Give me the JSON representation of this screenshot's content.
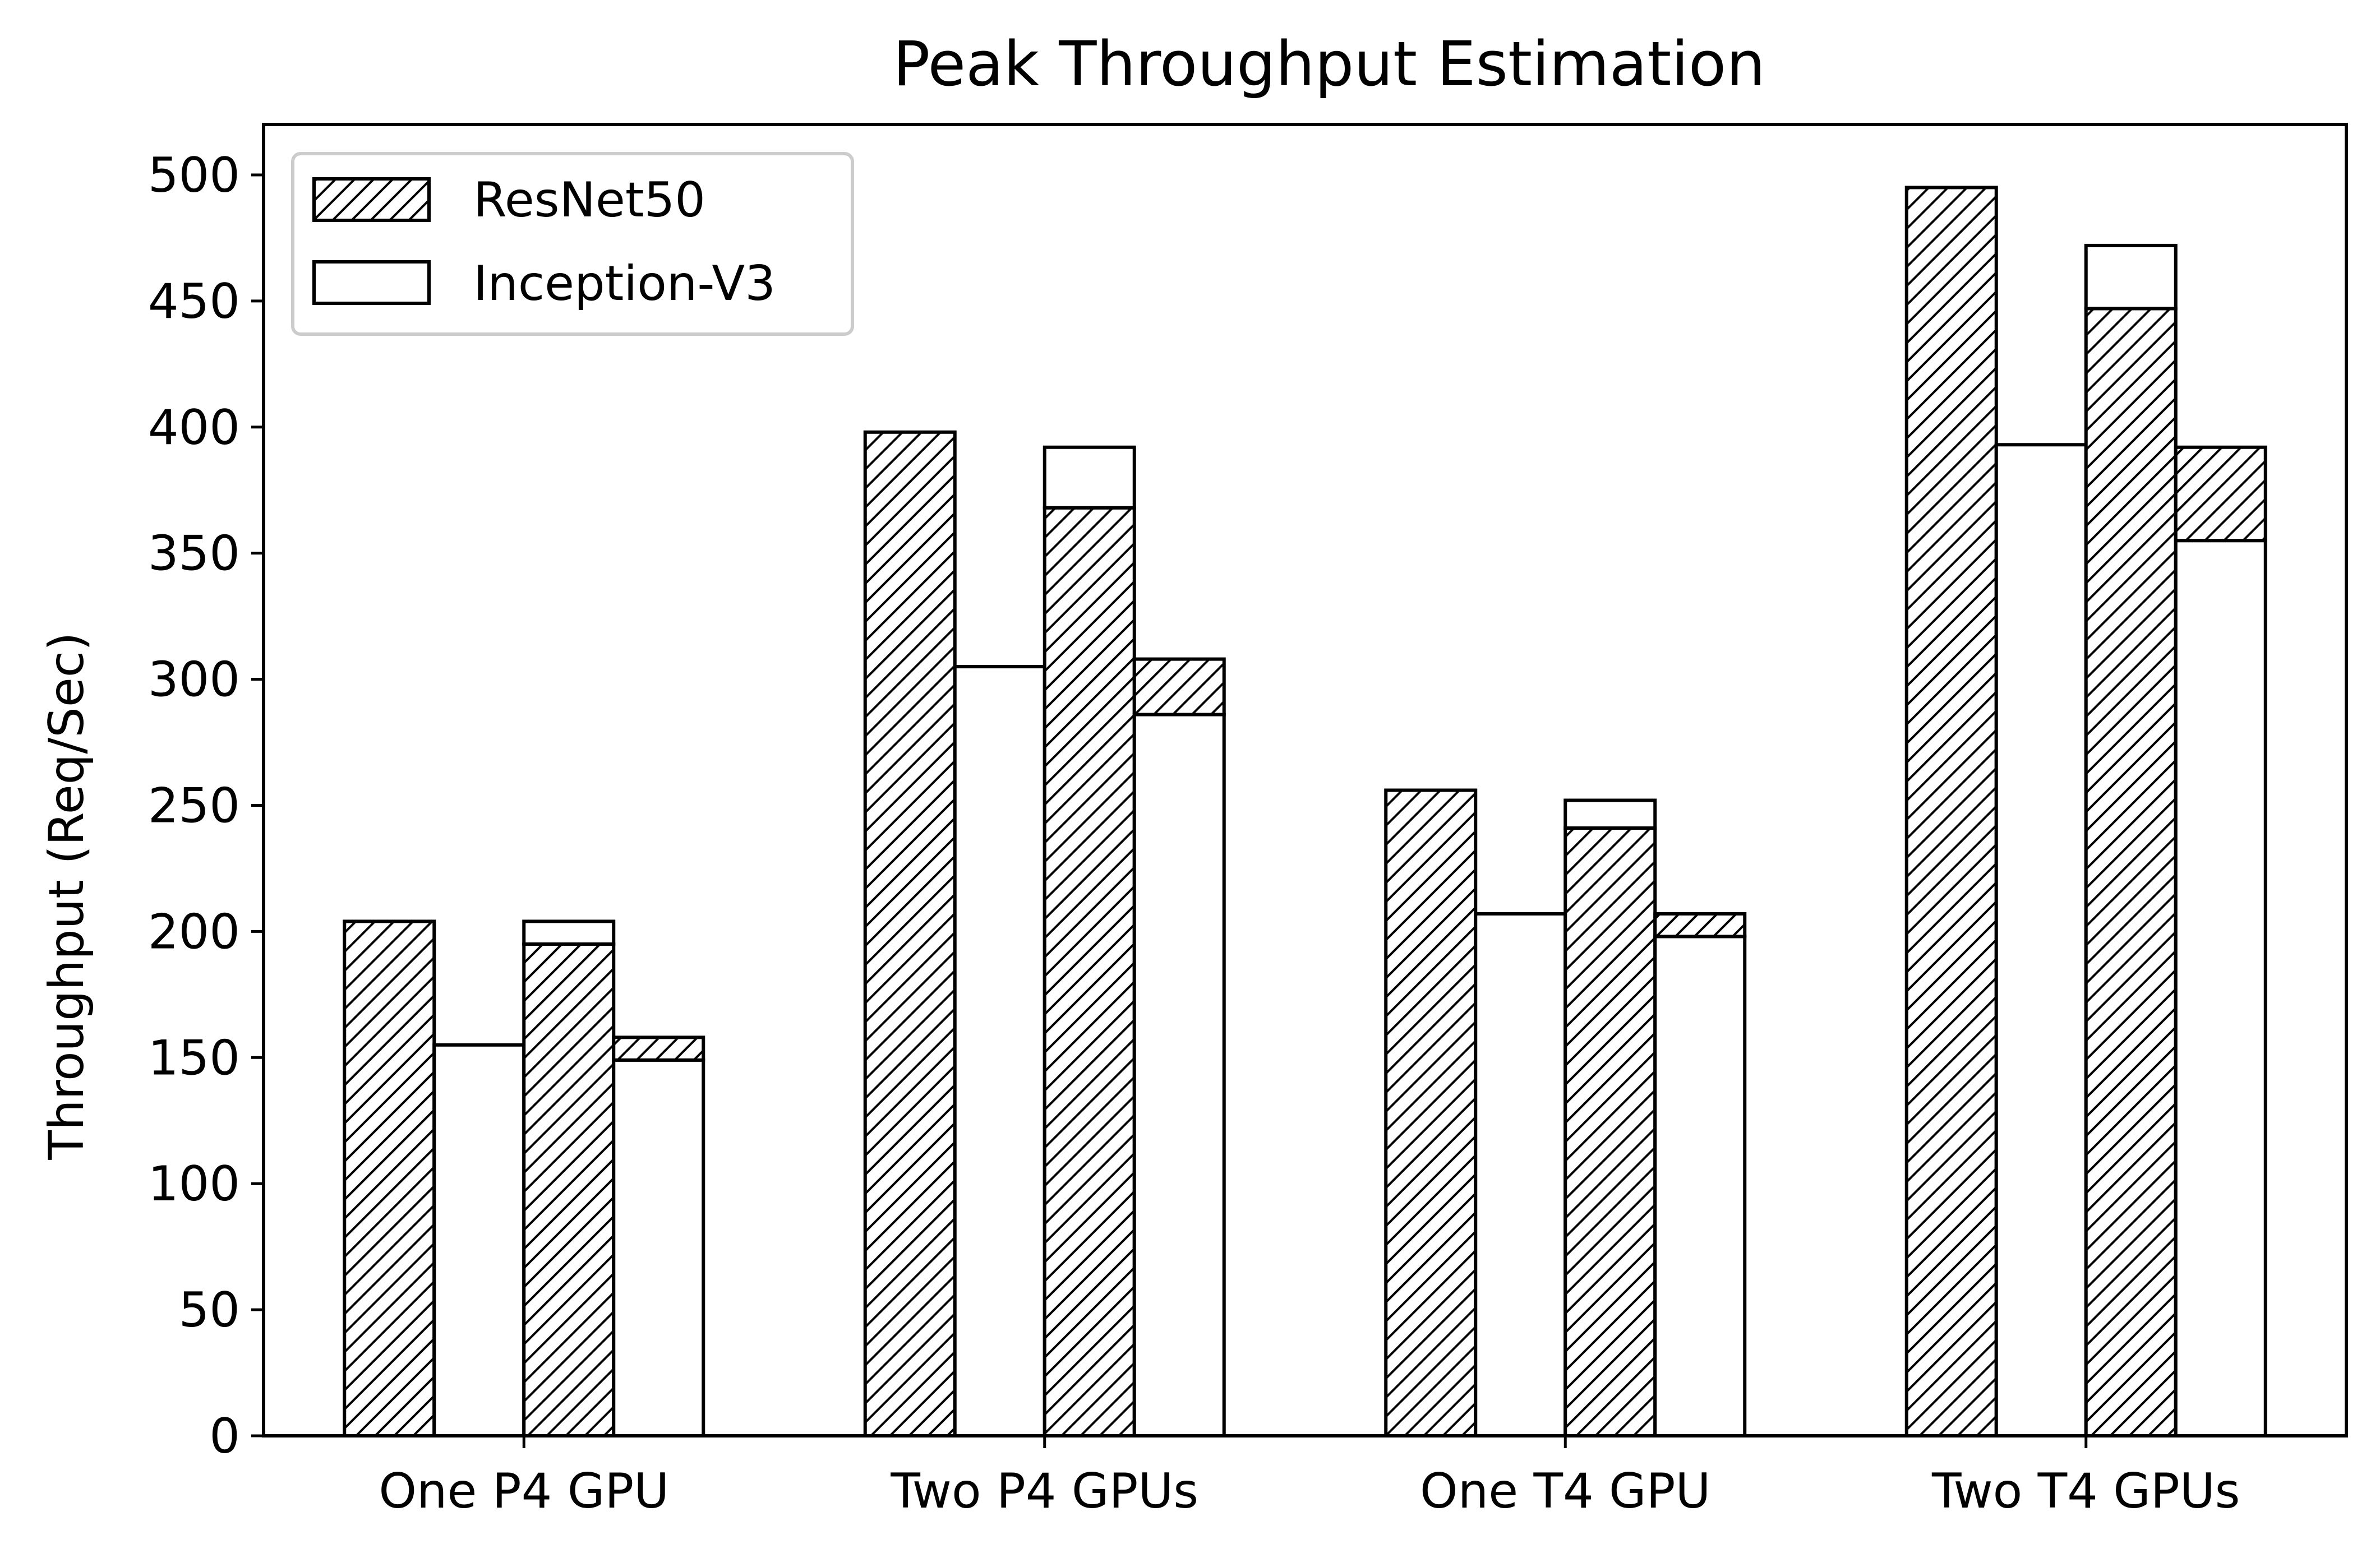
{
  "chart_data": {
    "type": "bar",
    "title": "Peak Throughput Estimation",
    "xlabel": "",
    "ylabel": "Throughput (Req/Sec)",
    "ylim": [
      0,
      520
    ],
    "yticks": [
      0,
      50,
      100,
      150,
      200,
      250,
      300,
      350,
      400,
      450,
      500
    ],
    "grid": false,
    "legend_position": "top-left",
    "categories": [
      "One P4 GPU",
      "Two P4 GPUs",
      "One T4 GPU",
      "Two T4 GPUs"
    ],
    "series": [
      {
        "name": "ResNet50",
        "pattern": "hatch",
        "values": [
          204,
          398,
          256,
          495
        ]
      },
      {
        "name": "Inception-V3",
        "pattern": "empty",
        "values": [
          155,
          305,
          207,
          393
        ]
      }
    ],
    "stacked_bars": [
      {
        "stack": "mixed-1",
        "segments": [
          {
            "series": "ResNet50",
            "values": [
              195,
              368,
              241,
              447
            ]
          },
          {
            "series": "Inception-V3",
            "values": [
              9,
              24,
              11,
              25
            ]
          }
        ]
      },
      {
        "stack": "mixed-2",
        "segments": [
          {
            "series": "Inception-V3",
            "values": [
              149,
              286,
              198,
              355
            ]
          },
          {
            "series": "ResNet50",
            "values": [
              9,
              22,
              9,
              37
            ]
          }
        ]
      }
    ],
    "colors": {
      "edge": "#000000",
      "fill": "#ffffff",
      "hatch": "#000000"
    }
  }
}
